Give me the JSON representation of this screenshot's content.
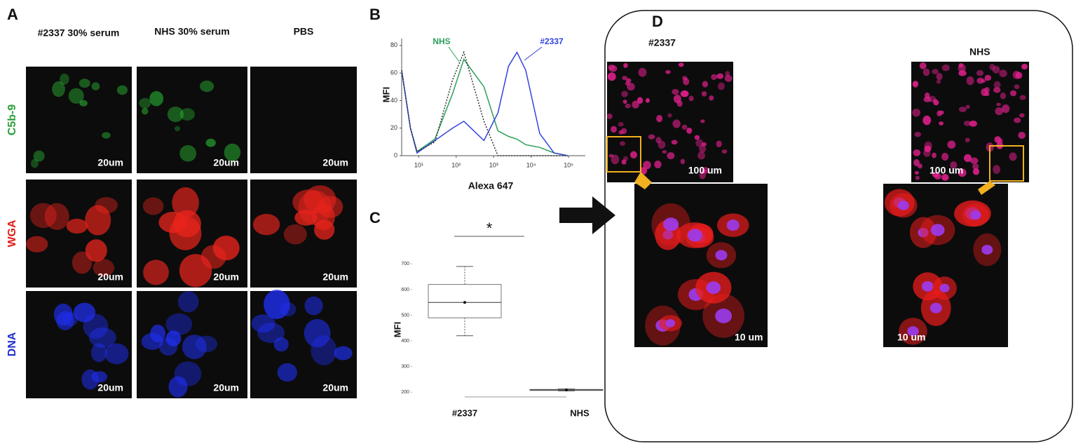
{
  "panel_labels": [
    "A",
    "B",
    "C",
    "D"
  ],
  "panel_a": {
    "columns": [
      "#2337 30% serum",
      "NHS 30% serum",
      "PBS"
    ],
    "rows": [
      "C5b-9",
      "WGA",
      "DNA"
    ],
    "scale_labels": [
      [
        "20um",
        "20um",
        "20um"
      ],
      [
        "20um",
        "20um",
        "20um"
      ],
      [
        "20um",
        "20um",
        "20um"
      ]
    ]
  },
  "panel_d": {
    "columns": [
      "#2337",
      "NHS"
    ],
    "overview_scale": [
      "100 um",
      "100 um"
    ],
    "zoom_scale": [
      "10 um",
      "10 um"
    ]
  },
  "chart_data": [
    {
      "type": "line",
      "xlabel": "Alexa 647",
      "ylabel": "MFI",
      "xlog": true,
      "x": [
        3.5,
        6,
        9,
        27,
        80,
        160,
        550,
        1300,
        2500,
        4200,
        7200,
        17000,
        41000,
        95000
      ],
      "xlim": [
        3.5,
        280000
      ],
      "xticks": [
        {
          "value": 10,
          "label": "10¹"
        },
        {
          "value": 100,
          "label": "10²"
        },
        {
          "value": 1000,
          "label": "10³"
        },
        {
          "value": 10000,
          "label": "10⁴"
        },
        {
          "value": 100000,
          "label": "10⁵"
        }
      ],
      "ylim": [
        0,
        85
      ],
      "yticks": [
        0,
        20,
        40,
        60,
        80
      ],
      "series": [
        {
          "name": "NHS",
          "color": "#2ca05a",
          "values": [
            62,
            20,
            3,
            12,
            45,
            70,
            50,
            18,
            14,
            12,
            8,
            6,
            2,
            0
          ]
        },
        {
          "name": "#2337",
          "color": "#3344dd",
          "values": [
            62,
            20,
            2,
            11,
            20,
            25,
            11,
            31,
            65,
            75,
            62,
            16,
            2,
            0
          ]
        },
        {
          "color": "#333333",
          "dash": true,
          "values": [
            62,
            20,
            3,
            10,
            55,
            75,
            25,
            0,
            0,
            0,
            0,
            0,
            0,
            0
          ]
        }
      ]
    },
    {
      "type": "box",
      "ylabel": "MFI",
      "categories": [
        "#2337",
        "NHS"
      ],
      "stats": {
        "min": [
          420,
          205
        ],
        "q1": [
          490,
          207
        ],
        "median": [
          550,
          209
        ],
        "q3": [
          620,
          211
        ],
        "max": [
          690,
          213
        ]
      },
      "mean": [
        550,
        209
      ],
      "ylim": [
        190,
        720
      ],
      "yticks": [
        200,
        300,
        400,
        500,
        600,
        700
      ],
      "annotation": "*"
    }
  ]
}
